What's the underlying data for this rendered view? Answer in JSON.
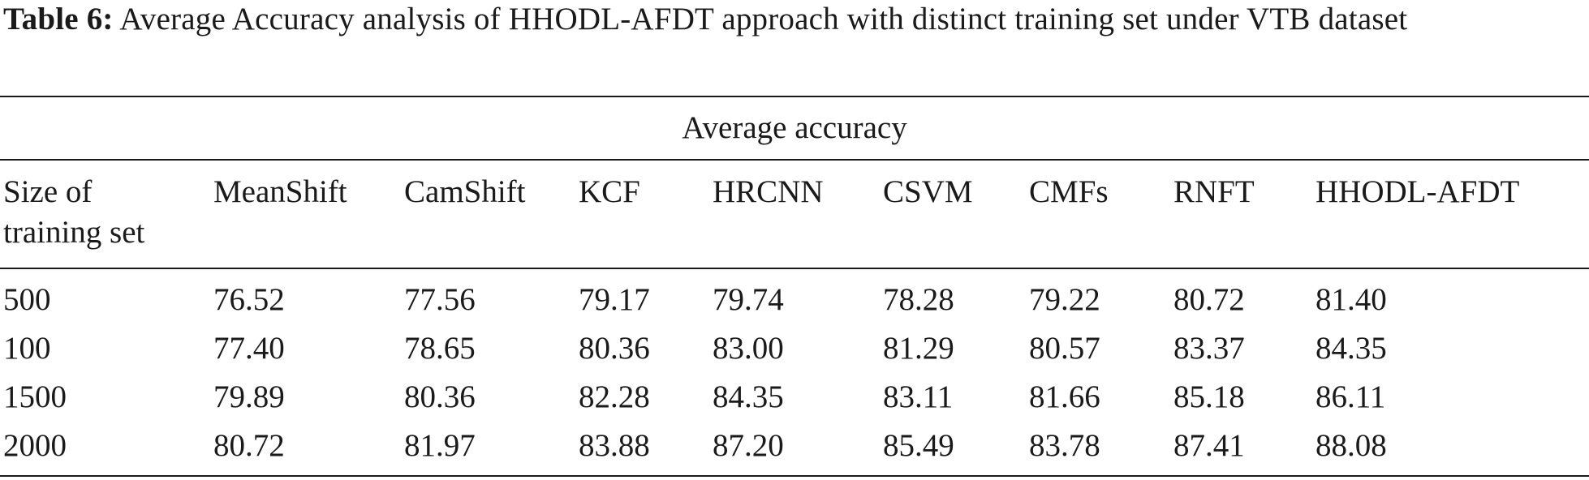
{
  "caption": {
    "label": "Table 6:",
    "text": " Average Accuracy analysis of HHODL-AFDT approach with distinct training set under VTB dataset"
  },
  "table": {
    "group_header": "Average accuracy",
    "row_header": "Size of training set",
    "columns": [
      "MeanShift",
      "CamShift",
      "KCF",
      "HRCNN",
      "CSVM",
      "CMFs",
      "RNFT",
      "HHODL-AFDT"
    ],
    "rows": [
      {
        "size": "500",
        "values": [
          "76.52",
          "77.56",
          "79.17",
          "79.74",
          "78.28",
          "79.22",
          "80.72",
          "81.40"
        ]
      },
      {
        "size": "100",
        "values": [
          "77.40",
          "78.65",
          "80.36",
          "83.00",
          "81.29",
          "80.57",
          "83.37",
          "84.35"
        ]
      },
      {
        "size": "1500",
        "values": [
          "79.89",
          "80.36",
          "82.28",
          "84.35",
          "83.11",
          "81.66",
          "85.18",
          "86.11"
        ]
      },
      {
        "size": "2000",
        "values": [
          "80.72",
          "81.97",
          "83.88",
          "87.20",
          "85.49",
          "83.78",
          "87.41",
          "88.08"
        ]
      }
    ]
  }
}
